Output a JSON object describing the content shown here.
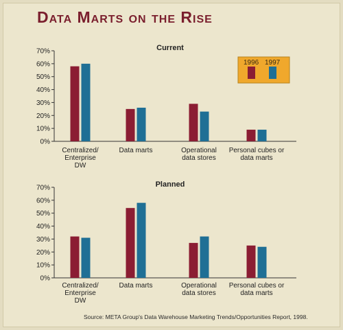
{
  "title": "Data Marts on the Rise",
  "source": "Source: META Group's Data Warehouse Marketing Trends/Opportunities Report, 1998.",
  "colors": {
    "s1996": "#8b1d33",
    "s1997": "#1f6f95",
    "legend_bg": "#f0a82c"
  },
  "chart_data": [
    {
      "type": "bar",
      "title": "Current",
      "categories": [
        "Centralized/\nEnterprise\nDW",
        "Data marts",
        "Operational\ndata stores",
        "Personal cubes or\ndata marts"
      ],
      "series": [
        {
          "name": "1996",
          "values": [
            58,
            25,
            29,
            9
          ]
        },
        {
          "name": "1997",
          "values": [
            60,
            26,
            23,
            9
          ]
        }
      ],
      "ylim": [
        0,
        70
      ],
      "yticks": [
        "0%",
        "10%",
        "20%",
        "30%",
        "40%",
        "50%",
        "60%",
        "70%"
      ],
      "legend": "top-right"
    },
    {
      "type": "bar",
      "title": "Planned",
      "categories": [
        "Centralized/\nEnterprise\nDW",
        "Data marts",
        "Operational\ndata stores",
        "Personal cubes or\ndata marts"
      ],
      "series": [
        {
          "name": "1996",
          "values": [
            32,
            54,
            27,
            25
          ]
        },
        {
          "name": "1997",
          "values": [
            31,
            58,
            32,
            24
          ]
        }
      ],
      "ylim": [
        0,
        70
      ],
      "yticks": [
        "0%",
        "10%",
        "20%",
        "30%",
        "40%",
        "50%",
        "60%",
        "70%"
      ]
    }
  ]
}
